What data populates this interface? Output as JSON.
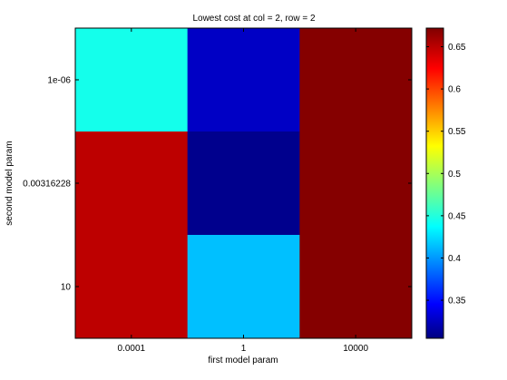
{
  "chart_data": {
    "type": "heatmap",
    "title": "Lowest cost at col = 2, row = 2",
    "xlabel": "first model param",
    "ylabel": "second model param",
    "x_categories": [
      "0.0001",
      "1",
      "10000"
    ],
    "y_categories": [
      "1e-06",
      "0.00316228",
      "10"
    ],
    "values": [
      [
        0.45,
        0.33,
        0.67
      ],
      [
        0.65,
        0.31,
        0.67
      ],
      [
        0.65,
        0.42,
        0.67
      ]
    ],
    "colormap": "jet",
    "clim": [
      0.305,
      0.672
    ],
    "colorbar_ticks": [
      "0.35",
      "0.4",
      "0.45",
      "0.5",
      "0.55",
      "0.6",
      "0.65"
    ],
    "colorbar_tick_values": [
      0.35,
      0.4,
      0.45,
      0.5,
      0.55,
      0.6,
      0.65
    ],
    "y_tick_rows": [
      0.5,
      1.5,
      2.5
    ]
  }
}
